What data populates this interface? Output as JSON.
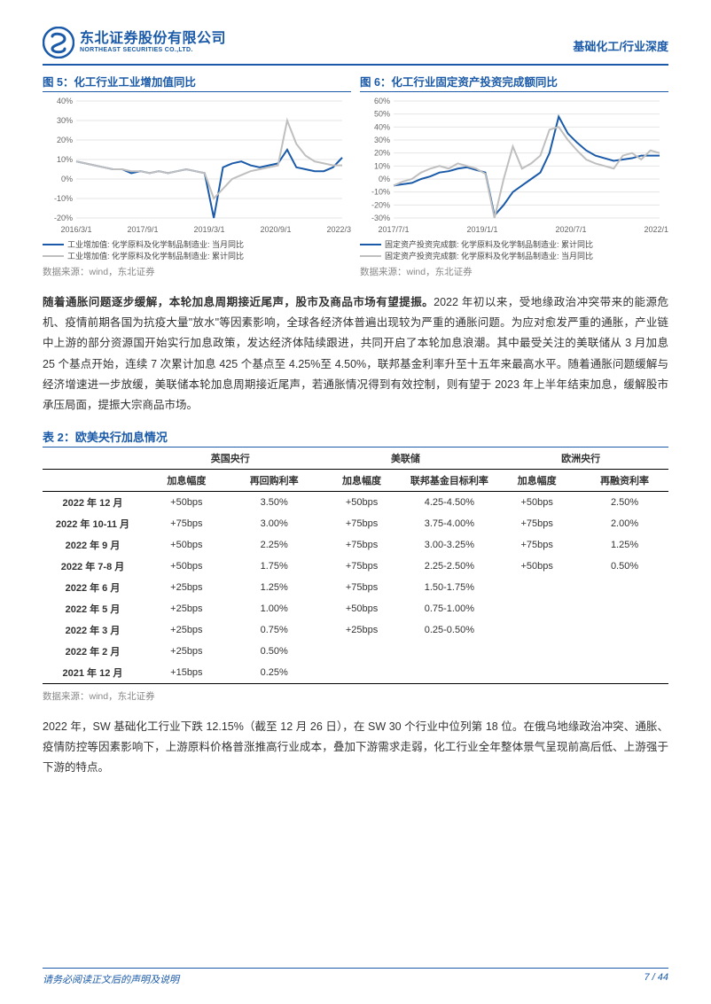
{
  "header": {
    "logo_cn": "东北证券股份有限公司",
    "logo_en": "NORTHEAST SECURITIES CO.,LTD.",
    "breadcrumb": "基础化工/行业深度"
  },
  "fig5": {
    "title": "图 5：化工行业工业增加值同比",
    "type": "line",
    "x_labels": [
      "2016/3/1",
      "2017/9/1",
      "2019/3/1",
      "2020/9/1",
      "2022/3/1"
    ],
    "y_ticks": [
      -20,
      -10,
      0,
      10,
      20,
      30,
      40
    ],
    "ylim": [
      -20,
      40
    ],
    "y_suffix": "%",
    "series": [
      {
        "name": "工业增加值: 化学原料及化学制品制造业: 当月同比",
        "color": "#1a5aa8",
        "width": 2,
        "values": [
          9,
          8,
          7,
          6,
          5,
          5,
          3,
          4,
          3,
          4,
          3,
          4,
          5,
          4,
          3,
          -20,
          6,
          8,
          9,
          7,
          6,
          7,
          8,
          15,
          6,
          5,
          4,
          4,
          6,
          11
        ]
      },
      {
        "name": "工业增加值: 化学原料及化学制品制造业: 累计同比",
        "color": "#bfbfbf",
        "width": 2,
        "values": [
          9,
          8,
          7,
          6,
          5,
          5,
          4,
          4,
          3,
          4,
          3,
          4,
          5,
          4,
          3,
          -10,
          -5,
          0,
          2,
          4,
          5,
          6,
          7,
          30,
          18,
          12,
          9,
          8,
          7,
          7
        ]
      }
    ],
    "src": "数据来源：wind，东北证券",
    "background_color": "#ffffff",
    "grid_color": "#e6e6e6",
    "label_fontsize": 9
  },
  "fig6": {
    "title": "图 6：化工行业固定资产投资完成额同比",
    "type": "line",
    "x_labels": [
      "2017/7/1",
      "2019/1/1",
      "2020/7/1",
      "2022/1/1"
    ],
    "y_ticks": [
      -30,
      -20,
      -10,
      0,
      10,
      20,
      30,
      40,
      50,
      60
    ],
    "ylim": [
      -30,
      60
    ],
    "y_suffix": "%",
    "series": [
      {
        "name": "固定资产投资完成额: 化学原料及化学制品制造业: 累计同比",
        "color": "#1a5aa8",
        "width": 2,
        "values": [
          -5,
          -4,
          -3,
          0,
          2,
          5,
          6,
          8,
          9,
          7,
          5,
          -28,
          -20,
          -10,
          -5,
          0,
          5,
          20,
          48,
          35,
          28,
          22,
          18,
          16,
          14,
          15,
          16,
          18,
          18,
          18
        ]
      },
      {
        "name": "固定资产投资完成额: 化学原料及化学制品制造业: 当月同比",
        "color": "#bfbfbf",
        "width": 2,
        "values": [
          -5,
          -2,
          0,
          5,
          8,
          10,
          8,
          12,
          10,
          8,
          4,
          -30,
          0,
          25,
          8,
          12,
          18,
          38,
          40,
          30,
          22,
          15,
          12,
          10,
          8,
          18,
          20,
          15,
          22,
          20
        ]
      }
    ],
    "src": "数据来源：wind，东北证券",
    "background_color": "#ffffff",
    "grid_color": "#e6e6e6",
    "label_fontsize": 9
  },
  "para1": {
    "bold": "随着通胀问题逐步缓解，本轮加息周期接近尾声，股市及商品市场有望提振。",
    "rest": "2022 年初以来，受地缘政治冲突带来的能源危机、疫情前期各国为抗疫大量\"放水\"等因素影响，全球各经济体普遍出现较为严重的通胀问题。为应对愈发严重的通胀，产业链中上游的部分资源国开始实行加息政策，发达经济体陆续跟进，共同开启了本轮加息浪潮。其中最受关注的美联储从 3 月加息 25 个基点开始，连续 7 次累计加息 425 个基点至 4.25%至 4.50%，联邦基金利率升至十五年来最高水平。随着通胀问题缓解与经济增速进一步放缓，美联储本轮加息周期接近尾声，若通胀情况得到有效控制，则有望于 2023 年上半年结束加息，缓解股市承压局面，提振大宗商品市场。"
  },
  "table2": {
    "title": "表 2：欧美央行加息情况",
    "group_heads": [
      "",
      "英国央行",
      "美联储",
      "欧洲央行"
    ],
    "sub_heads": [
      "",
      "加息幅度",
      "再回购利率",
      "加息幅度",
      "联邦基金目标利率",
      "加息幅度",
      "再融资利率"
    ],
    "rows": [
      [
        "2022 年 12 月",
        "+50bps",
        "3.50%",
        "+50bps",
        "4.25-4.50%",
        "+50bps",
        "2.50%"
      ],
      [
        "2022 年 10-11 月",
        "+75bps",
        "3.00%",
        "+75bps",
        "3.75-4.00%",
        "+75bps",
        "2.00%"
      ],
      [
        "2022 年 9 月",
        "+50bps",
        "2.25%",
        "+75bps",
        "3.00-3.25%",
        "+75bps",
        "1.25%"
      ],
      [
        "2022 年 7-8 月",
        "+50bps",
        "1.75%",
        "+75bps",
        "2.25-2.50%",
        "+50bps",
        "0.50%"
      ],
      [
        "2022 年 6 月",
        "+25bps",
        "1.25%",
        "+75bps",
        "1.50-1.75%",
        "",
        ""
      ],
      [
        "2022 年 5 月",
        "+25bps",
        "1.00%",
        "+50bps",
        "0.75-1.00%",
        "",
        ""
      ],
      [
        "2022 年 3 月",
        "+25bps",
        "0.75%",
        "+25bps",
        "0.25-0.50%",
        "",
        ""
      ],
      [
        "2022 年 2 月",
        "+25bps",
        "0.50%",
        "",
        "",
        "",
        ""
      ],
      [
        "2021 年 12 月",
        "+15bps",
        "0.25%",
        "",
        "",
        "",
        ""
      ]
    ],
    "src": "数据来源：wind，东北证券"
  },
  "para2": {
    "text": "2022 年，SW 基础化工行业下跌 12.15%（截至 12 月 26 日），在 SW 30 个行业中位列第 18 位。在俄乌地缘政治冲突、通胀、疫情防控等因素影响下，上游原料价格普涨推高行业成本，叠加下游需求走弱，化工行业全年整体景气呈现前高后低、上游强于下游的特点。"
  },
  "footer": {
    "left": "请务必阅读正文后的声明及说明",
    "right": "7 / 44"
  }
}
